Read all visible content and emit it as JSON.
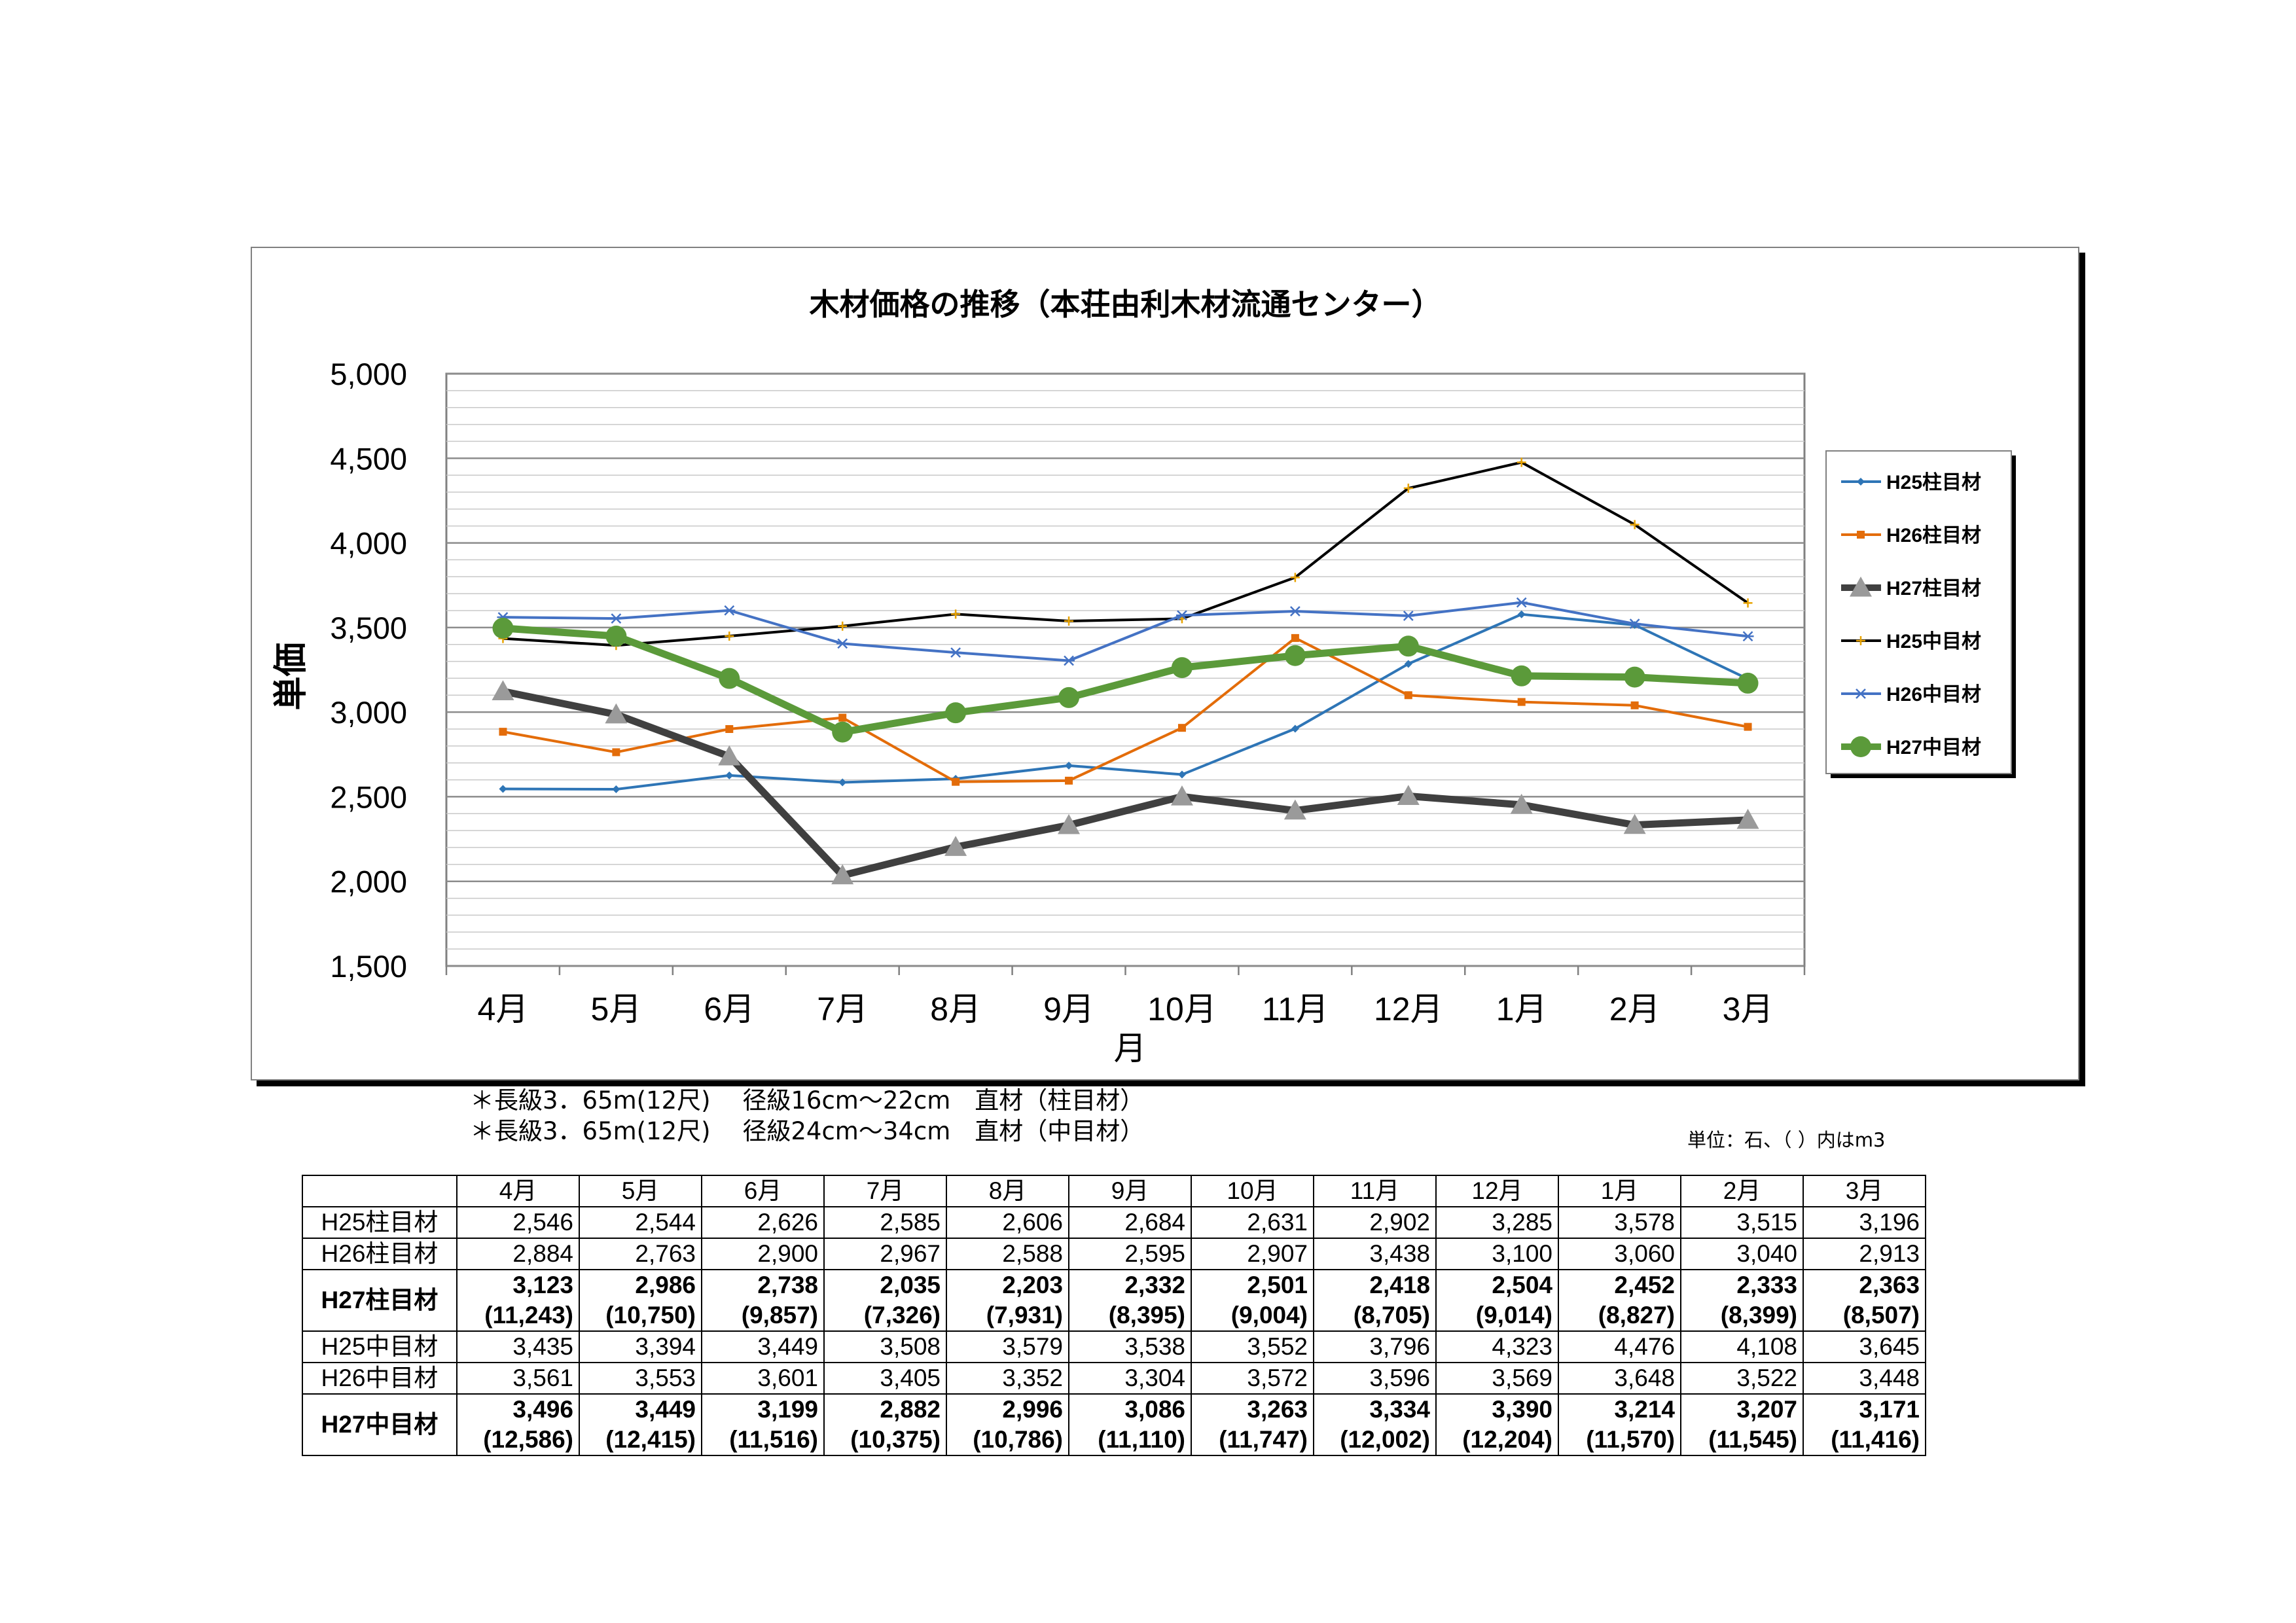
{
  "chart_data": {
    "type": "line",
    "title": "木材価格の推移（本荘由利木材流通センター）",
    "xlabel": "月",
    "ylabel": "単価",
    "categories": [
      "4月",
      "5月",
      "6月",
      "7月",
      "8月",
      "9月",
      "10月",
      "11月",
      "12月",
      "1月",
      "2月",
      "3月"
    ],
    "ylim": [
      1500,
      5000
    ],
    "yticks": [
      "1,500",
      "2,000",
      "2,500",
      "3,000",
      "3,500",
      "4,000",
      "4,500",
      "5,000"
    ],
    "ytick_values": [
      1500,
      2000,
      2500,
      3000,
      3500,
      4000,
      4500,
      5000
    ],
    "grid": true,
    "legend_position": "right",
    "series": [
      {
        "name": "H25柱目材",
        "values": [
          2546,
          2544,
          2626,
          2585,
          2606,
          2684,
          2631,
          2902,
          3285,
          3578,
          3515,
          3196
        ],
        "color": "#2E75B6",
        "marker": "diamond"
      },
      {
        "name": "H26柱目材",
        "values": [
          2884,
          2763,
          2900,
          2967,
          2588,
          2595,
          2907,
          3438,
          3100,
          3060,
          3040,
          2913
        ],
        "color": "#E36C09",
        "marker": "square"
      },
      {
        "name": "H27柱目材",
        "values": [
          3123,
          2986,
          2738,
          2035,
          2203,
          2332,
          2501,
          2418,
          2504,
          2452,
          2333,
          2363
        ],
        "color": "#404040",
        "marker": "triangle"
      },
      {
        "name": "H25中目材",
        "values": [
          3435,
          3394,
          3449,
          3508,
          3579,
          3538,
          3552,
          3796,
          4323,
          4476,
          4108,
          3645
        ],
        "color": "#000000",
        "marker": "plus"
      },
      {
        "name": "H26中目材",
        "values": [
          3561,
          3553,
          3601,
          3405,
          3352,
          3304,
          3572,
          3596,
          3569,
          3648,
          3522,
          3448
        ],
        "color": "#4472C4",
        "marker": "star"
      },
      {
        "name": "H27中目材",
        "values": [
          3496,
          3449,
          3199,
          2882,
          2996,
          3086,
          3263,
          3334,
          3390,
          3214,
          3207,
          3171
        ],
        "color": "#5B9A3A",
        "marker": "circle"
      }
    ]
  },
  "notes": {
    "line1": "＊長級3．65m(12尺)　 径級16cm～22cm　直材（柱目材）",
    "line2": "＊長級3．65m(12尺)　 径級24cm～34cm　直材（中目材）",
    "unit": "単位：石、（ ）内はm3"
  },
  "table": {
    "months": [
      "4月",
      "5月",
      "6月",
      "7月",
      "8月",
      "9月",
      "10月",
      "11月",
      "12月",
      "1月",
      "2月",
      "3月"
    ],
    "rows": [
      {
        "label": "H25柱目材",
        "values": [
          "2,546",
          "2,544",
          "2,626",
          "2,585",
          "2,606",
          "2,684",
          "2,631",
          "2,902",
          "3,285",
          "3,578",
          "3,515",
          "3,196"
        ]
      },
      {
        "label": "H26柱目材",
        "values": [
          "2,884",
          "2,763",
          "2,900",
          "2,967",
          "2,588",
          "2,595",
          "2,907",
          "3,438",
          "3,100",
          "3,060",
          "3,040",
          "2,913"
        ]
      },
      {
        "label": "H27柱目材",
        "bold": true,
        "values": [
          "3,123",
          "2,986",
          "2,738",
          "2,035",
          "2,203",
          "2,332",
          "2,501",
          "2,418",
          "2,504",
          "2,452",
          "2,333",
          "2,363"
        ],
        "sub": [
          "(11,243)",
          "(10,750)",
          "(9,857)",
          "(7,326)",
          "(7,931)",
          "(8,395)",
          "(9,004)",
          "(8,705)",
          "(9,014)",
          "(8,827)",
          "(8,399)",
          "(8,507)"
        ]
      },
      {
        "label": "H25中目材",
        "values": [
          "3,435",
          "3,394",
          "3,449",
          "3,508",
          "3,579",
          "3,538",
          "3,552",
          "3,796",
          "4,323",
          "4,476",
          "4,108",
          "3,645"
        ]
      },
      {
        "label": "H26中目材",
        "values": [
          "3,561",
          "3,553",
          "3,601",
          "3,405",
          "3,352",
          "3,304",
          "3,572",
          "3,596",
          "3,569",
          "3,648",
          "3,522",
          "3,448"
        ]
      },
      {
        "label": "H27中目材",
        "bold": true,
        "values": [
          "3,496",
          "3,449",
          "3,199",
          "2,882",
          "2,996",
          "3,086",
          "3,263",
          "3,334",
          "3,390",
          "3,214",
          "3,207",
          "3,171"
        ],
        "sub": [
          "(12,586)",
          "(12,415)",
          "(11,516)",
          "(10,375)",
          "(10,786)",
          "(11,110)",
          "(11,747)",
          "(12,002)",
          "(12,204)",
          "(11,570)",
          "(11,545)",
          "(11,416)"
        ]
      }
    ]
  }
}
